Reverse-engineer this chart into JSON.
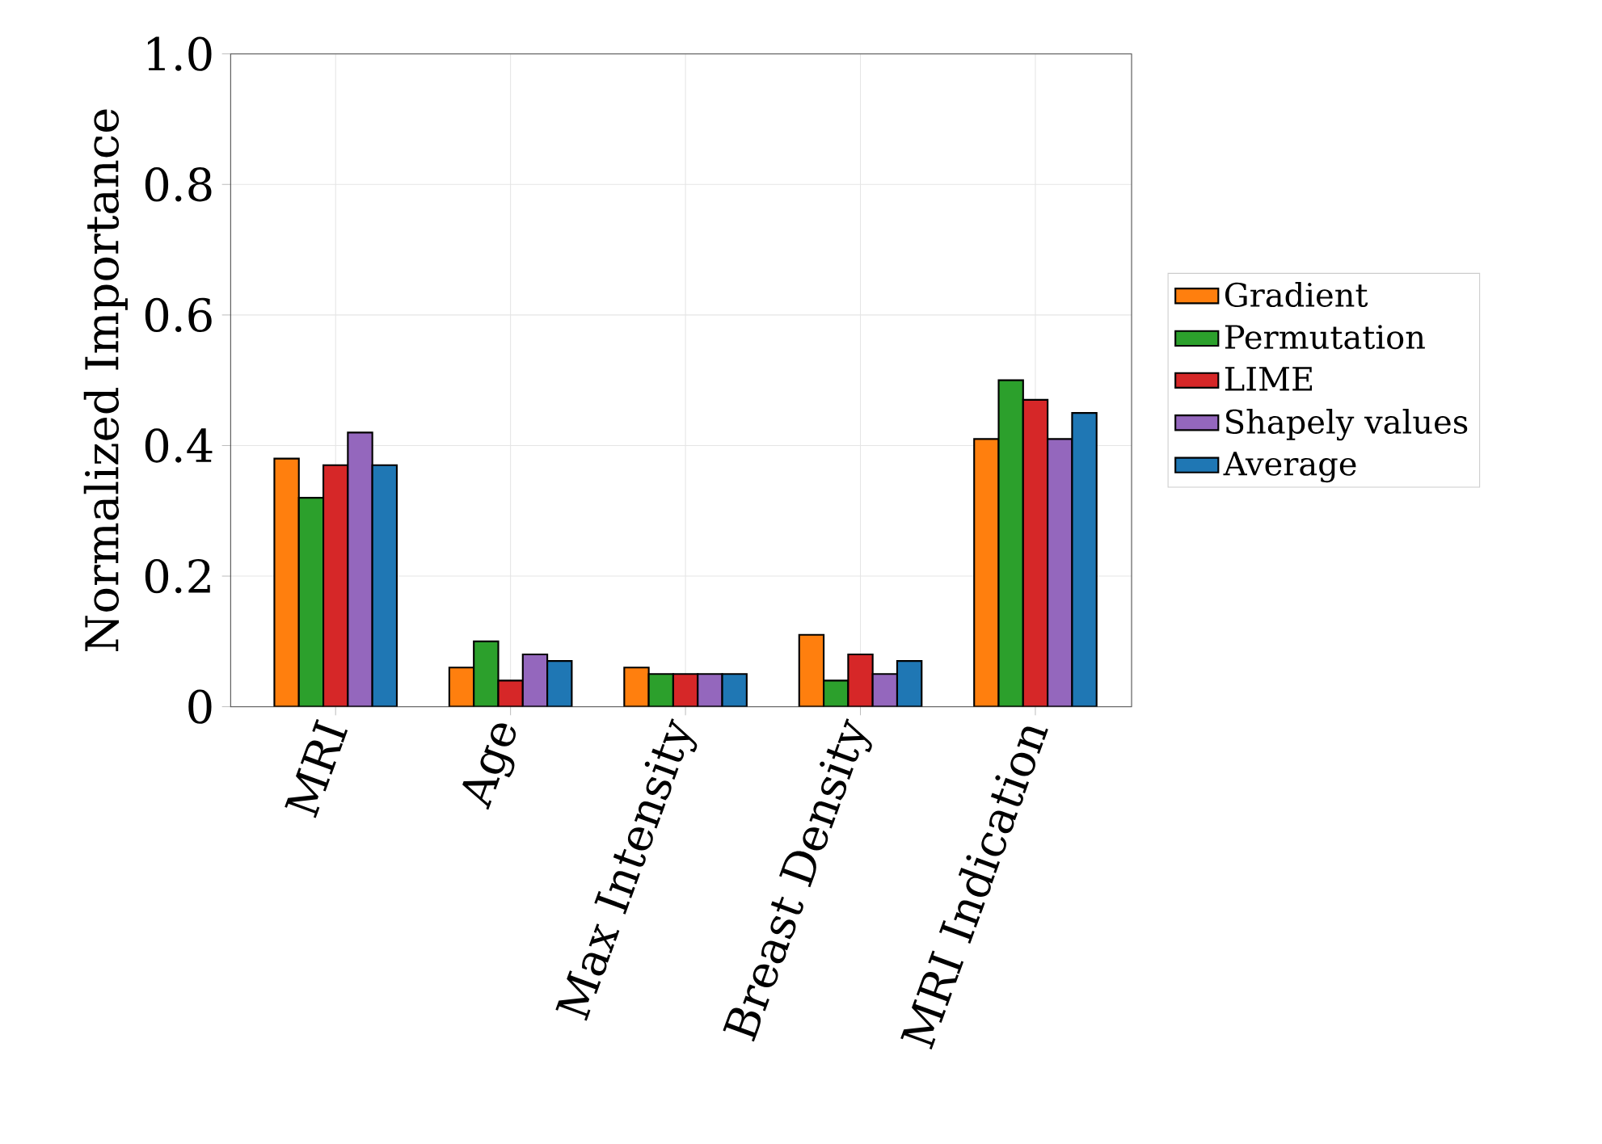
{
  "chart_data": {
    "type": "bar",
    "ylabel": "Normalized Importance",
    "categories": [
      "MRI",
      "Age",
      "Max Intensity",
      "Breast Density",
      "MRI Indication"
    ],
    "series": [
      {
        "name": "Gradient",
        "color": "#ff7f0e",
        "values": [
          0.38,
          0.06,
          0.06,
          0.11,
          0.41
        ]
      },
      {
        "name": "Permutation",
        "color": "#2ca02c",
        "values": [
          0.32,
          0.1,
          0.05,
          0.04,
          0.5
        ]
      },
      {
        "name": "LIME",
        "color": "#d62728",
        "values": [
          0.37,
          0.04,
          0.05,
          0.08,
          0.47
        ]
      },
      {
        "name": "Shapely values",
        "color": "#9467bd",
        "values": [
          0.42,
          0.08,
          0.05,
          0.05,
          0.41
        ]
      },
      {
        "name": "Average",
        "color": "#1f77b4",
        "values": [
          0.37,
          0.07,
          0.05,
          0.07,
          0.45
        ]
      }
    ],
    "ylim": [
      0,
      1
    ],
    "yticks": [
      0,
      0.2,
      0.4,
      0.6,
      0.8,
      {
        "value": 1,
        "label": "1.0"
      }
    ],
    "grid": true,
    "legend": "right"
  }
}
